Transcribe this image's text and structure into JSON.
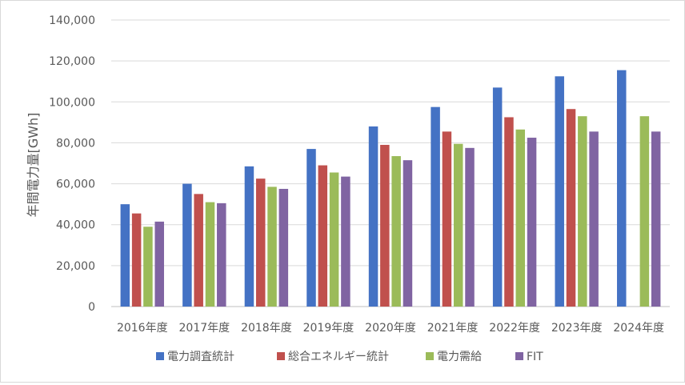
{
  "chart_data": {
    "type": "bar",
    "title": "",
    "xlabel": "",
    "ylabel": "年間電力量[GWh]",
    "ylim": [
      0,
      140000
    ],
    "yticks": [
      0,
      20000,
      40000,
      60000,
      80000,
      100000,
      120000,
      140000
    ],
    "ytick_labels": [
      "0",
      "20,000",
      "40,000",
      "60,000",
      "80,000",
      "100,000",
      "120,000",
      "140,000"
    ],
    "grid": true,
    "legend_position": "bottom",
    "categories": [
      "2016年度",
      "2017年度",
      "2018年度",
      "2019年度",
      "2020年度",
      "2021年度",
      "2022年度",
      "2023年度",
      "2024年度"
    ],
    "series": [
      {
        "name": "電力調査統計",
        "color": "#4472c4",
        "values": [
          50000,
          60000,
          68500,
          77000,
          88000,
          97500,
          107000,
          112500,
          115500
        ]
      },
      {
        "name": "総合エネルギー統計",
        "color": "#c0504d",
        "values": [
          45500,
          55000,
          62500,
          69000,
          79000,
          85500,
          92500,
          96500,
          null
        ]
      },
      {
        "name": "電力需給",
        "color": "#9bbb59",
        "values": [
          39000,
          51000,
          58500,
          65500,
          73500,
          79500,
          86500,
          93000,
          93000
        ]
      },
      {
        "name": "FIT",
        "color": "#8064a2",
        "values": [
          41500,
          50500,
          57500,
          63500,
          71500,
          77500,
          82500,
          85500,
          85500
        ]
      }
    ]
  }
}
